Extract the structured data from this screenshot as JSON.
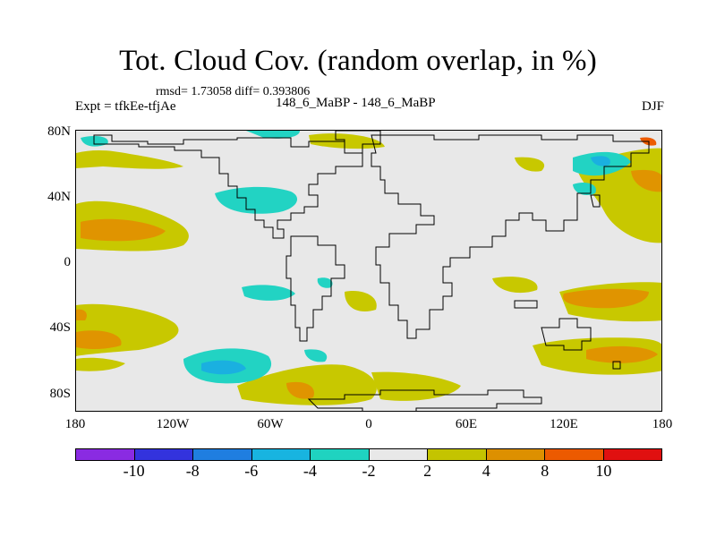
{
  "title": "Tot. Cloud Cov. (random overlap, in %)",
  "stats": "rmsd= 1.73058 diff= 0.393806",
  "left_label": "Expt = tfkEe-tfjAe",
  "center_label": "148_6_MaBP - 148_6_MaBP",
  "right_label": "DJF",
  "y_ticks": [
    "80N",
    "40N",
    "0",
    "40S",
    "80S"
  ],
  "x_ticks": [
    "180",
    "120W",
    "60W",
    "0",
    "60E",
    "120E",
    "180"
  ],
  "colorbar": {
    "colors": [
      "#8a2be2",
      "#3333dd",
      "#1f7ee0",
      "#18b4e0",
      "#1fd3c0",
      "#e8e8e8",
      "#c4c400",
      "#dd9000",
      "#ec5a00",
      "#e01010"
    ],
    "labels": [
      "-10",
      "-8",
      "-6",
      "-4",
      "-2",
      "2",
      "4",
      "8",
      "10"
    ]
  },
  "palette": {
    "yellow": "#c8c800",
    "orange": "#e09400",
    "teal": "#22d3c3",
    "lightblue": "#1ab0e0",
    "background": "#e8e8e8"
  }
}
